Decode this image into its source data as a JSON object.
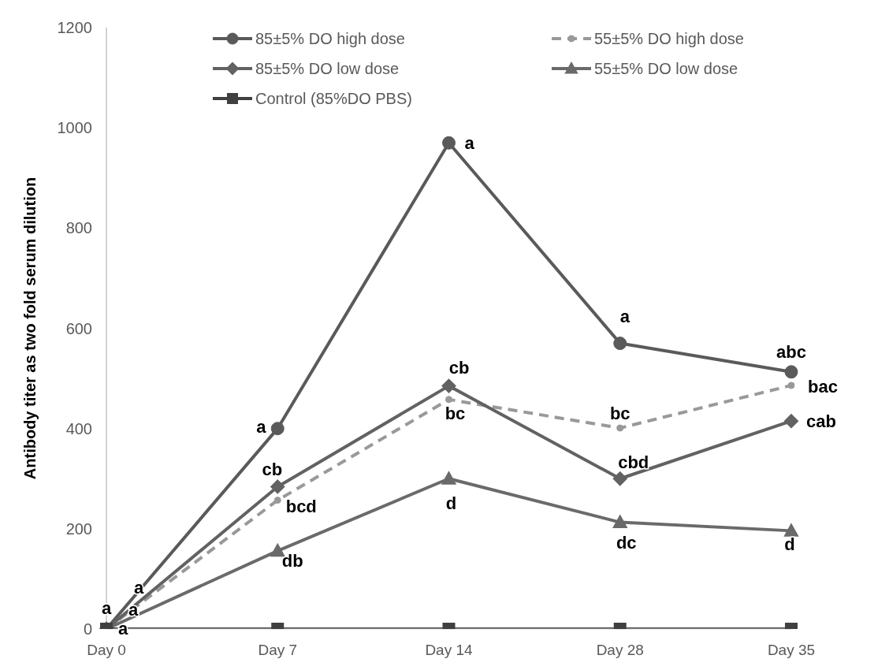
{
  "chart_data": {
    "type": "line",
    "ylabel": "Antibody titer as two fold serum dilution",
    "categories": [
      "Day 0",
      "Day 7",
      "Day 14",
      "Day 28",
      "Day 35"
    ],
    "ylim": [
      0,
      1200
    ],
    "yticks": [
      0,
      200,
      400,
      600,
      800,
      1000,
      1200
    ],
    "grid": false,
    "legend": "top",
    "series": [
      {
        "name": "85±5% DO high dose",
        "color": "#5a5a5a",
        "marker": "circle",
        "line_style": "solid",
        "values": [
          0,
          400,
          970,
          570,
          513
        ],
        "value_labels": [
          "a",
          "a",
          "a",
          "a",
          "abc"
        ]
      },
      {
        "name": "55±5% DO high dose",
        "color": "#999999",
        "marker": "circle",
        "line_style": "dashed",
        "values": [
          0,
          257,
          458,
          401,
          486
        ],
        "value_labels": [
          "a",
          "bcd",
          "bc",
          "bc",
          "bac"
        ]
      },
      {
        "name": "85±5% DO low dose",
        "color": "#626262",
        "marker": "diamond",
        "line_style": "solid",
        "values": [
          0,
          284,
          485,
          300,
          415
        ],
        "value_labels": [
          "a",
          "cb",
          "cb",
          "cbd",
          "cab"
        ]
      },
      {
        "name": "55±5% DO low dose",
        "color": "#6a6a6a",
        "marker": "triangle",
        "line_style": "solid",
        "values": [
          0,
          156,
          300,
          213,
          196
        ],
        "value_labels": [
          "a",
          "db",
          "d",
          "dc",
          "d"
        ]
      },
      {
        "name": "Control (85%DO PBS)",
        "color": "#404040",
        "marker": "square",
        "line_style": "solid",
        "values": [
          0,
          0,
          0,
          0,
          0
        ]
      }
    ]
  }
}
